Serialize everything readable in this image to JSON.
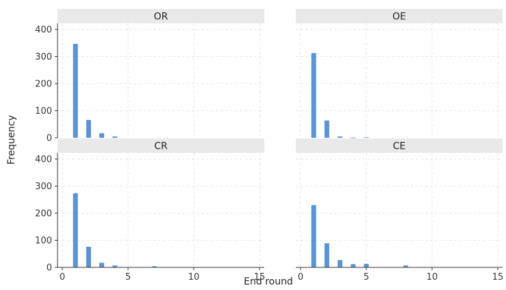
{
  "chart_data": {
    "type": "bar",
    "layout": "facet-grid 2x2",
    "xlabel": "End round",
    "ylabel": "Frequency",
    "xlim": [
      0,
      15
    ],
    "ylim": [
      0,
      400
    ],
    "x_ticks": [
      0,
      5,
      10,
      15
    ],
    "y_ticks": [
      0,
      100,
      200,
      300,
      400
    ],
    "grid": true,
    "bar_color": "#5b93d3",
    "strip_color": "#e9e9e9",
    "panels": [
      {
        "title": "OR",
        "x": [
          1,
          2,
          3,
          4
        ],
        "values": [
          347,
          66,
          17,
          5
        ]
      },
      {
        "title": "OE",
        "x": [
          1,
          2,
          3,
          4,
          5
        ],
        "values": [
          313,
          64,
          5,
          1,
          2
        ]
      },
      {
        "title": "CR",
        "x": [
          1,
          2,
          3,
          4,
          5,
          7
        ],
        "values": [
          274,
          76,
          17,
          7,
          1,
          4
        ]
      },
      {
        "title": "CE",
        "x": [
          1,
          2,
          3,
          4,
          5,
          8,
          13
        ],
        "values": [
          230,
          89,
          27,
          12,
          13,
          7,
          1
        ]
      }
    ]
  }
}
